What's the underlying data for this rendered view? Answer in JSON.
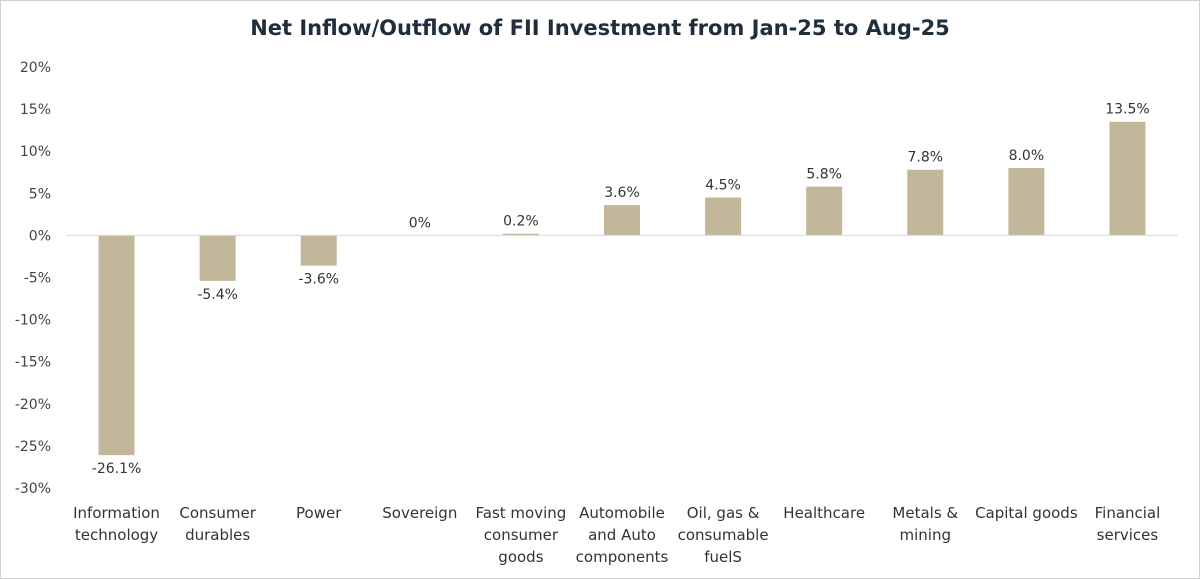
{
  "chart_data": {
    "type": "bar",
    "title": "Net Inflow/Outflow of FII Investment from Jan-25 to Aug-25",
    "xlabel": "",
    "ylabel": "",
    "ylim": [
      -30,
      20
    ],
    "yticks": [
      20,
      15,
      10,
      5,
      0,
      -5,
      -10,
      -15,
      -20,
      -25,
      -30
    ],
    "ytick_labels": [
      "20%",
      "15%",
      "10%",
      "5%",
      "0%",
      "-5%",
      "-10%",
      "-15%",
      "-20%",
      "-25%",
      "-30%"
    ],
    "categories": [
      [
        "Information",
        "technology"
      ],
      [
        "Consumer",
        "durables"
      ],
      [
        "Power"
      ],
      [
        "Sovereign"
      ],
      [
        "Fast moving",
        "consumer",
        "goods"
      ],
      [
        "Automobile",
        "and Auto",
        "components"
      ],
      [
        "Oil, gas &",
        "consumable",
        "fuelS"
      ],
      [
        "Healthcare"
      ],
      [
        "Metals &",
        "mining"
      ],
      [
        "Capital goods"
      ],
      [
        "Financial",
        "services"
      ]
    ],
    "values": [
      -26.1,
      -5.4,
      -3.6,
      0,
      0.2,
      3.6,
      4.5,
      5.8,
      7.8,
      8.0,
      13.5
    ],
    "value_labels": [
      "-26.1%",
      "-5.4%",
      "-3.6%",
      "0%",
      "0.2%",
      "3.6%",
      "4.5%",
      "5.8%",
      "7.8%",
      "8.0%",
      "13.5%"
    ],
    "bar_color": "#c2b79b",
    "grid": false,
    "legend": "none"
  }
}
